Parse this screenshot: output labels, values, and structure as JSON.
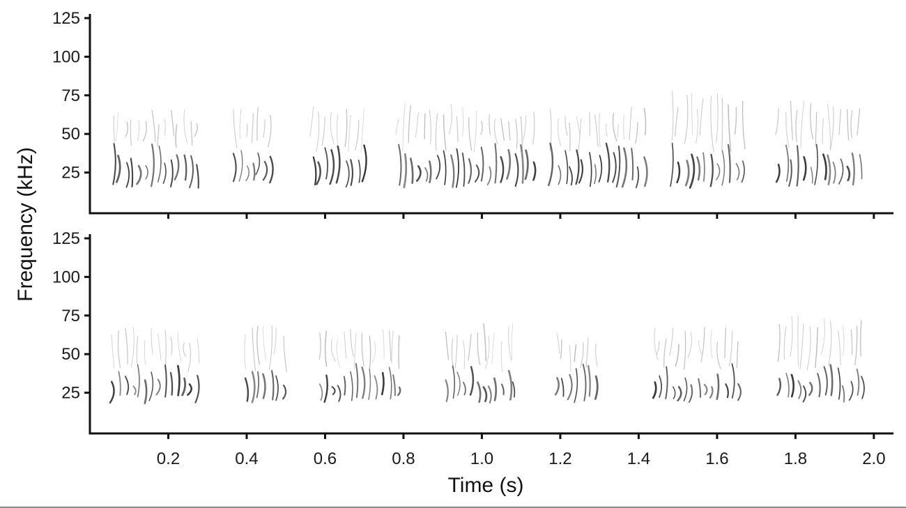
{
  "chart_data": [
    {
      "type": "heatmap",
      "panel": "top",
      "ylabel": "Frequency (kHz)",
      "ylim": [
        0,
        125
      ],
      "y_ticks": [
        25,
        50,
        75,
        100,
        125
      ],
      "xlim": [
        0,
        2.05
      ],
      "x_ticks": [
        0.2,
        0.4,
        0.6,
        0.8,
        1.0,
        1.2,
        1.4,
        1.6,
        1.8,
        2.0
      ],
      "x_tick_labels_shown": false,
      "colormap": "grayscale",
      "call_bouts": [
        {
          "start": 0.05,
          "end": 0.28,
          "freq_low": 15,
          "freq_high": 68
        },
        {
          "start": 0.36,
          "end": 0.47,
          "freq_low": 18,
          "freq_high": 68
        },
        {
          "start": 0.56,
          "end": 0.71,
          "freq_low": 15,
          "freq_high": 70
        },
        {
          "start": 0.78,
          "end": 1.14,
          "freq_low": 15,
          "freq_high": 70
        },
        {
          "start": 1.17,
          "end": 1.42,
          "freq_low": 15,
          "freq_high": 68
        },
        {
          "start": 1.48,
          "end": 1.67,
          "freq_low": 15,
          "freq_high": 78
        },
        {
          "start": 1.75,
          "end": 1.97,
          "freq_low": 15,
          "freq_high": 72
        }
      ]
    },
    {
      "type": "heatmap",
      "panel": "bottom",
      "ylabel": "Frequency (kHz)",
      "xlabel": "Time (s)",
      "ylim": [
        0,
        125
      ],
      "y_ticks": [
        25,
        50,
        75,
        100,
        125
      ],
      "xlim": [
        0,
        2.05
      ],
      "x_ticks": [
        0.2,
        0.4,
        0.6,
        0.8,
        1.0,
        1.2,
        1.4,
        1.6,
        1.8,
        2.0
      ],
      "x_tick_labels_shown": true,
      "colormap": "grayscale",
      "call_bouts": [
        {
          "start": 0.05,
          "end": 0.28,
          "freq_low": 18,
          "freq_high": 68
        },
        {
          "start": 0.39,
          "end": 0.5,
          "freq_low": 18,
          "freq_high": 72
        },
        {
          "start": 0.58,
          "end": 0.8,
          "freq_low": 18,
          "freq_high": 70
        },
        {
          "start": 0.9,
          "end": 1.09,
          "freq_low": 18,
          "freq_high": 70
        },
        {
          "start": 1.18,
          "end": 1.3,
          "freq_low": 18,
          "freq_high": 68
        },
        {
          "start": 1.43,
          "end": 1.66,
          "freq_low": 18,
          "freq_high": 68
        },
        {
          "start": 1.75,
          "end": 1.98,
          "freq_low": 18,
          "freq_high": 75
        }
      ]
    }
  ],
  "axes": {
    "ylabel": "Frequency (kHz)",
    "xlabel": "Time (s)"
  },
  "colors": {
    "axis": "#111111",
    "signal": "#2a2a2a",
    "background": "#ffffff"
  }
}
